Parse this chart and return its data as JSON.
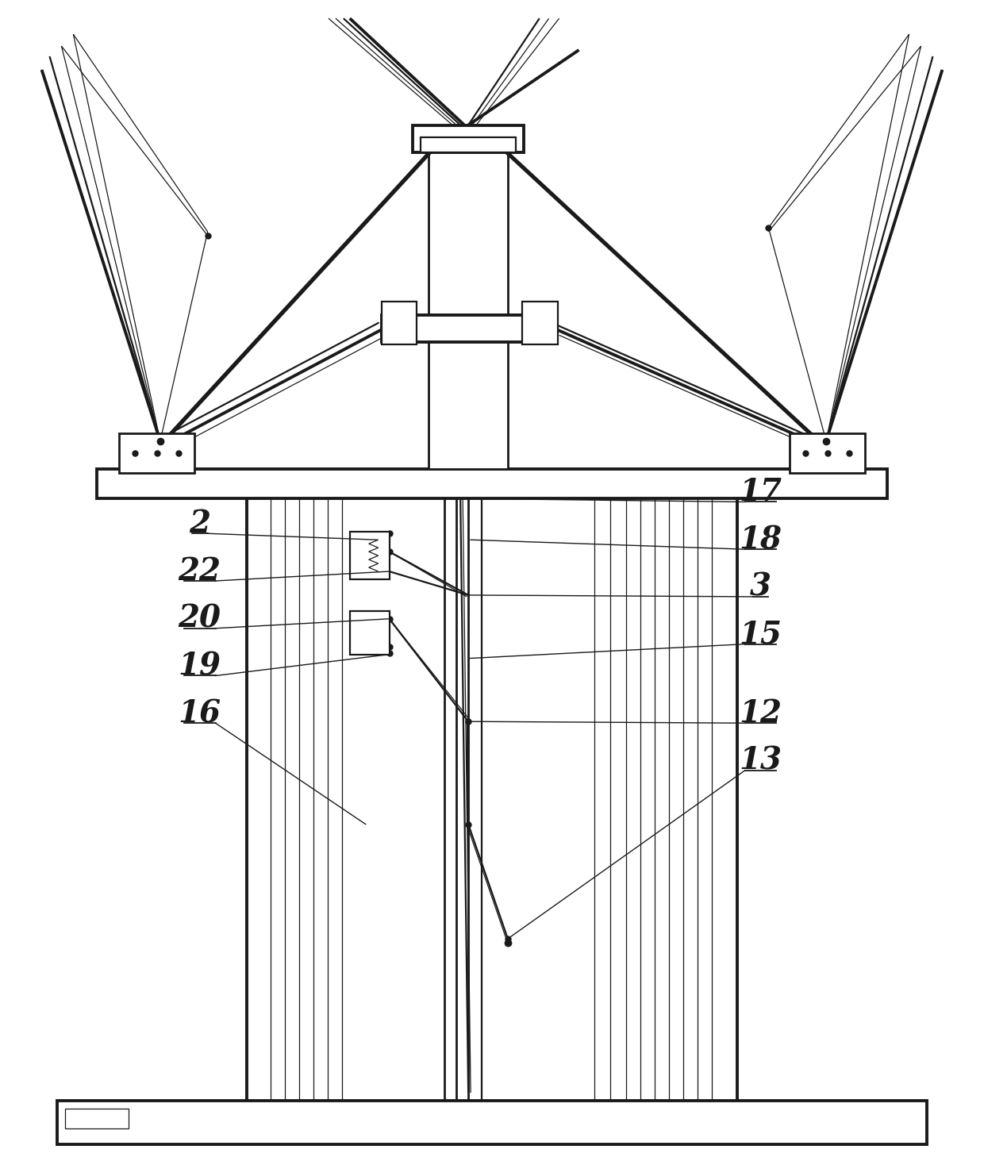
{
  "bg_color": "#ffffff",
  "line_color": "#1a1a1a",
  "lw_main": 1.6,
  "lw_thin": 0.9,
  "lw_thick": 2.8,
  "lw_medium": 2.0
}
